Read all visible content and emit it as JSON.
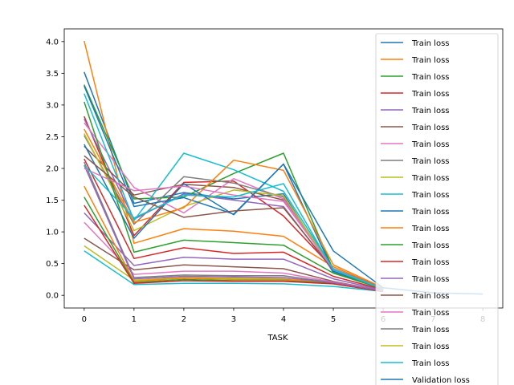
{
  "chart_data": {
    "type": "line",
    "title": "",
    "xlabel": "TASK",
    "ylabel": "",
    "xlim": [
      -0.4,
      8.4
    ],
    "ylim": [
      -0.2,
      4.2
    ],
    "xticks": [
      0,
      1,
      2,
      3,
      4,
      5,
      6,
      7,
      8
    ],
    "xtick_labels": [
      "0",
      "1",
      "2",
      "3",
      "4",
      "5",
      "6",
      "7",
      "8"
    ],
    "yticks": [
      0.0,
      0.5,
      1.0,
      1.5,
      2.0,
      2.5,
      3.0,
      3.5,
      4.0
    ],
    "ytick_labels": [
      "0.0",
      "0.5",
      "1.0",
      "1.5",
      "2.0",
      "2.5",
      "3.0",
      "3.5",
      "4.0"
    ],
    "grid": false,
    "legend_position": "right",
    "series": [
      {
        "name": "Train loss",
        "color": "#1f77b4",
        "x": [
          0,
          1,
          2,
          3,
          4,
          5,
          6
        ],
        "y": [
          3.52,
          1.45,
          1.62,
          1.52,
          1.6,
          0.36,
          0.1
        ]
      },
      {
        "name": "Train loss",
        "color": "#ff7f0e",
        "x": [
          0,
          1,
          2,
          3,
          4,
          5,
          6
        ],
        "y": [
          4.01,
          0.82,
          1.05,
          1.01,
          0.93,
          0.45,
          0.11
        ]
      },
      {
        "name": "Train loss",
        "color": "#2ca02c",
        "x": [
          0,
          1,
          2,
          3,
          4,
          5,
          6
        ],
        "y": [
          3.32,
          1.52,
          1.55,
          1.92,
          2.24,
          0.4,
          0.1
        ]
      },
      {
        "name": "Train loss",
        "color": "#d62728",
        "x": [
          0,
          1,
          2,
          3,
          4,
          5,
          6
        ],
        "y": [
          2.82,
          0.94,
          1.78,
          1.8,
          1.25,
          0.42,
          0.11
        ]
      },
      {
        "name": "Train loss",
        "color": "#9467bd",
        "x": [
          0,
          1,
          2,
          3,
          4,
          5,
          6
        ],
        "y": [
          2.78,
          1.2,
          1.6,
          1.5,
          1.4,
          0.38,
          0.1
        ]
      },
      {
        "name": "Train loss",
        "color": "#8c564b",
        "x": [
          0,
          1,
          2,
          3,
          4,
          5,
          6
        ],
        "y": [
          2.35,
          1.58,
          1.75,
          1.7,
          1.5,
          0.4,
          0.1
        ]
      },
      {
        "name": "Train loss",
        "color": "#e377c2",
        "x": [
          0,
          1,
          2,
          3,
          4,
          5,
          6
        ],
        "y": [
          2.72,
          1.7,
          1.3,
          1.84,
          1.52,
          0.4,
          0.1
        ]
      },
      {
        "name": "Train loss",
        "color": "#7f7f7f",
        "x": [
          0,
          1,
          2,
          3,
          4,
          5,
          6
        ],
        "y": [
          2.52,
          1.12,
          1.87,
          1.77,
          1.55,
          0.42,
          0.11
        ]
      },
      {
        "name": "Train loss",
        "color": "#bcbd22",
        "x": [
          0,
          1,
          2,
          3,
          4,
          5,
          6
        ],
        "y": [
          2.55,
          1.02,
          1.4,
          1.66,
          1.57,
          0.4,
          0.1
        ]
      },
      {
        "name": "Train loss",
        "color": "#17becf",
        "x": [
          0,
          1,
          2,
          3,
          4,
          5,
          6
        ],
        "y": [
          3.18,
          1.18,
          2.24,
          1.98,
          1.64,
          0.42,
          0.1
        ]
      },
      {
        "name": "Train loss",
        "color": "#1f77b4",
        "x": [
          0,
          1,
          2,
          3,
          4,
          5,
          6
        ],
        "y": [
          3.3,
          1.4,
          1.54,
          1.28,
          2.07,
          0.38,
          0.1
        ]
      },
      {
        "name": "Train loss",
        "color": "#ff7f0e",
        "x": [
          0,
          1,
          2,
          3,
          4,
          5,
          6
        ],
        "y": [
          2.62,
          1.15,
          1.38,
          2.13,
          1.97,
          0.48,
          0.12
        ]
      },
      {
        "name": "Train loss",
        "color": "#2ca02c",
        "x": [
          0,
          1,
          2,
          3,
          4,
          5,
          6
        ],
        "y": [
          3.05,
          0.68,
          0.87,
          0.83,
          0.79,
          0.35,
          0.1
        ]
      },
      {
        "name": "Train loss",
        "color": "#d62728",
        "x": [
          0,
          1,
          2,
          3,
          4,
          5,
          6
        ],
        "y": [
          2.15,
          0.58,
          0.75,
          0.66,
          0.68,
          0.3,
          0.09
        ]
      },
      {
        "name": "Train loss",
        "color": "#9467bd",
        "x": [
          0,
          1,
          2,
          3,
          4,
          5,
          6
        ],
        "y": [
          1.3,
          0.47,
          0.6,
          0.57,
          0.57,
          0.26,
          0.08
        ]
      },
      {
        "name": "Train loss",
        "color": "#8c564b",
        "x": [
          0,
          1,
          2,
          3,
          4,
          5,
          6
        ],
        "y": [
          0.9,
          0.4,
          0.48,
          0.45,
          0.42,
          0.22,
          0.07
        ]
      },
      {
        "name": "Train loss",
        "color": "#e377c2",
        "x": [
          0,
          1,
          2,
          3,
          4,
          5,
          6
        ],
        "y": [
          1.15,
          0.33,
          0.38,
          0.38,
          0.35,
          0.21,
          0.07
        ]
      },
      {
        "name": "Train loss",
        "color": "#7f7f7f",
        "x": [
          0,
          1,
          2,
          3,
          4,
          5,
          6
        ],
        "y": [
          2.1,
          0.28,
          0.32,
          0.31,
          0.31,
          0.2,
          0.07
        ]
      },
      {
        "name": "Train loss",
        "color": "#bcbd22",
        "x": [
          0,
          1,
          2,
          3,
          4,
          5,
          6
        ],
        "y": [
          0.78,
          0.24,
          0.28,
          0.27,
          0.26,
          0.18,
          0.06
        ]
      },
      {
        "name": "Train loss",
        "color": "#17becf",
        "x": [
          0,
          1,
          2,
          3,
          4,
          5,
          6
        ],
        "y": [
          0.7,
          0.17,
          0.19,
          0.19,
          0.18,
          0.14,
          0.06
        ]
      },
      {
        "name": "Validation loss",
        "color": "#1f77b4",
        "x": [
          0,
          1,
          2,
          3,
          4,
          5,
          6,
          7,
          8
        ],
        "y": [
          2.38,
          0.9,
          1.76,
          1.27,
          2.07,
          0.7,
          0.12,
          0.04,
          0.02
        ]
      },
      {
        "name": "",
        "color": "#ff7f0e",
        "x": [
          0,
          1,
          2,
          3,
          4,
          5,
          6
        ],
        "y": [
          1.72,
          0.22,
          0.27,
          0.25,
          0.25,
          0.2,
          0.07
        ]
      },
      {
        "name": "",
        "color": "#2ca02c",
        "x": [
          0,
          1,
          2,
          3,
          4,
          5,
          6
        ],
        "y": [
          1.55,
          0.2,
          0.25,
          0.23,
          0.23,
          0.19,
          0.06
        ]
      },
      {
        "name": "",
        "color": "#d62728",
        "x": [
          0,
          1,
          2,
          3,
          4,
          5,
          6
        ],
        "y": [
          1.42,
          0.19,
          0.23,
          0.22,
          0.22,
          0.18,
          0.06
        ]
      },
      {
        "name": "",
        "color": "#9467bd",
        "x": [
          0,
          1,
          2,
          3,
          4,
          5,
          6
        ],
        "y": [
          2.05,
          0.26,
          0.3,
          0.29,
          0.28,
          0.2,
          0.07
        ]
      },
      {
        "name": "",
        "color": "#8c564b",
        "x": [
          0,
          1,
          2,
          3,
          4,
          5,
          6
        ],
        "y": [
          2.2,
          1.55,
          1.23,
          1.33,
          1.38,
          0.4,
          0.1
        ]
      },
      {
        "name": "",
        "color": "#e377c2",
        "x": [
          0,
          1,
          2,
          3,
          4,
          5,
          6
        ],
        "y": [
          2.0,
          1.65,
          1.72,
          1.58,
          1.48,
          0.41,
          0.1
        ]
      },
      {
        "name": "",
        "color": "#17becf",
        "x": [
          0,
          1,
          2,
          3,
          4,
          5,
          6
        ],
        "y": [
          2.05,
          1.22,
          1.58,
          1.55,
          1.76,
          0.4,
          0.1
        ]
      }
    ]
  }
}
